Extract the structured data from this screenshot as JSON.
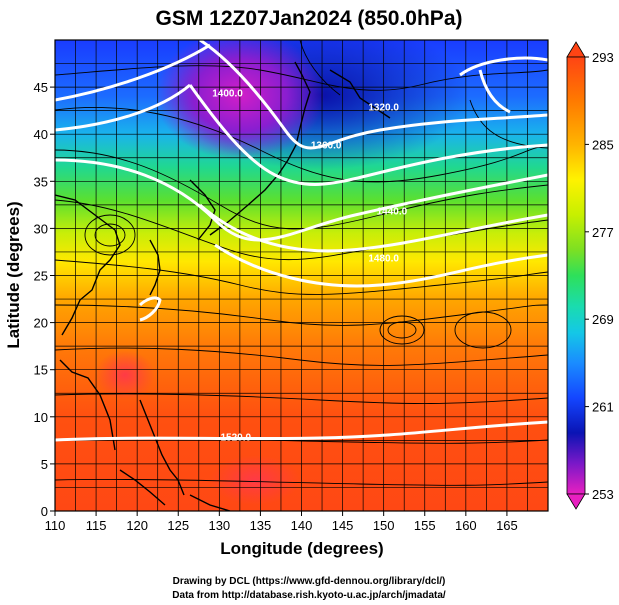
{
  "title": "GSM 12Z07Jan2024 (850.0hPa)",
  "x_axis_label": "Longitude (degrees)",
  "y_axis_label": "Latitude  (degrees)",
  "x_ticks": [
    "110",
    "115",
    "120",
    "125",
    "130",
    "135",
    "140",
    "145",
    "150",
    "155",
    "160",
    "165"
  ],
  "y_ticks": [
    "0",
    "5",
    "10",
    "15",
    "20",
    "25",
    "30",
    "35",
    "40",
    "45"
  ],
  "colorbar_ticks": [
    "293",
    "285",
    "277",
    "269",
    "261",
    "253"
  ],
  "contour_labels": [
    "1400.0",
    "1320.0",
    "1360.0",
    "1440.0",
    "1480.0",
    "1520.0"
  ],
  "credits": [
    "Drawing by DCL (https://www.gfd-dennou.org/library/dcl/)",
    "Data from http://database.rish.kyoto-u.ac.jp/arch/jmadata/"
  ],
  "chart_data": {
    "type": "map",
    "xlim": [
      110,
      170
    ],
    "ylim": [
      0,
      50
    ],
    "variable_color": "temperature (K)",
    "color_range": [
      253,
      293
    ],
    "colorbar_palette": [
      "#e820c0",
      "#7a18c8",
      "#0a14b4",
      "#1446ff",
      "#1a8cff",
      "#14c8e6",
      "#1adcae",
      "#2ee05a",
      "#7ee022",
      "#c8f000",
      "#fff200",
      "#ffb400",
      "#ff7a00",
      "#ff4414"
    ],
    "contours": [
      {
        "label": "1320.0",
        "lon": 150,
        "lat": 42.5
      },
      {
        "label": "1360.0",
        "lon": 143,
        "lat": 38.5
      },
      {
        "label": "1400.0",
        "lon": 131,
        "lat": 44.0
      },
      {
        "label": "1440.0",
        "lon": 151,
        "lat": 31.5
      },
      {
        "label": "1480.0",
        "lon": 150,
        "lat": 26.5
      },
      {
        "label": "1520.0",
        "lon": 132,
        "lat": 7.5
      }
    ]
  }
}
